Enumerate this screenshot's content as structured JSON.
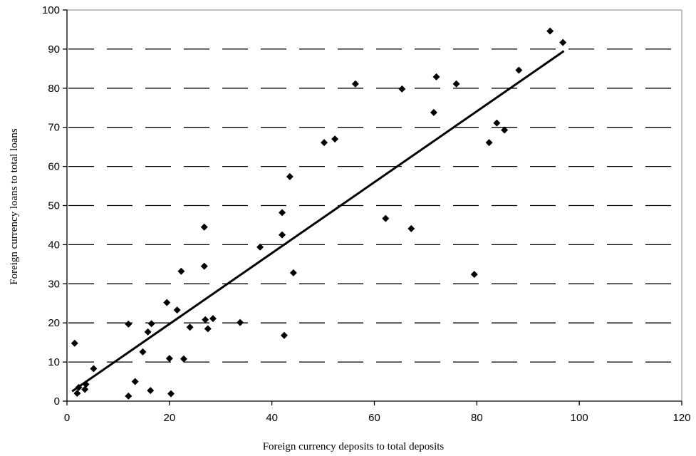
{
  "chart_data": {
    "type": "scatter",
    "title": "",
    "xlabel": "Foreign currency deposits to total deposits",
    "ylabel": "Foreign currency loans to total loans",
    "xlim": [
      0,
      120
    ],
    "ylim": [
      0,
      100
    ],
    "xticks": [
      0,
      20,
      40,
      60,
      80,
      100,
      120
    ],
    "yticks": [
      0,
      10,
      20,
      30,
      40,
      50,
      60,
      70,
      80,
      90,
      100
    ],
    "grid": "dashed-horizontal",
    "trendline": {
      "x": [
        1,
        97
      ],
      "y": [
        2.5,
        89.5
      ]
    },
    "points": [
      {
        "x": 1.5,
        "y": 14.8
      },
      {
        "x": 2,
        "y": 2
      },
      {
        "x": 2.3,
        "y": 3.5
      },
      {
        "x": 3.5,
        "y": 3
      },
      {
        "x": 3.7,
        "y": 4.3
      },
      {
        "x": 5.2,
        "y": 8.3
      },
      {
        "x": 12,
        "y": 1.3
      },
      {
        "x": 12,
        "y": 19.7
      },
      {
        "x": 13.3,
        "y": 5
      },
      {
        "x": 14.8,
        "y": 12.6
      },
      {
        "x": 15.8,
        "y": 17.7
      },
      {
        "x": 16.3,
        "y": 2.7
      },
      {
        "x": 16.5,
        "y": 19.8
      },
      {
        "x": 19.5,
        "y": 25.2
      },
      {
        "x": 20,
        "y": 10.9
      },
      {
        "x": 20.3,
        "y": 1.9
      },
      {
        "x": 21.5,
        "y": 23.3
      },
      {
        "x": 22.3,
        "y": 33.2
      },
      {
        "x": 22.8,
        "y": 10.8
      },
      {
        "x": 24,
        "y": 18.9
      },
      {
        "x": 26.8,
        "y": 44.5
      },
      {
        "x": 26.8,
        "y": 34.5
      },
      {
        "x": 27,
        "y": 20.8
      },
      {
        "x": 27.5,
        "y": 18.5
      },
      {
        "x": 28.5,
        "y": 21.1
      },
      {
        "x": 33.8,
        "y": 20.1
      },
      {
        "x": 37.7,
        "y": 39.4
      },
      {
        "x": 42,
        "y": 48.2
      },
      {
        "x": 42,
        "y": 42.5
      },
      {
        "x": 42.4,
        "y": 16.8
      },
      {
        "x": 43.5,
        "y": 57.4
      },
      {
        "x": 44.2,
        "y": 32.8
      },
      {
        "x": 50.2,
        "y": 66.1
      },
      {
        "x": 52.3,
        "y": 67
      },
      {
        "x": 56.3,
        "y": 81.1
      },
      {
        "x": 62.2,
        "y": 46.7
      },
      {
        "x": 65.4,
        "y": 79.8
      },
      {
        "x": 67.2,
        "y": 44.1
      },
      {
        "x": 71.6,
        "y": 73.8
      },
      {
        "x": 72.1,
        "y": 82.9
      },
      {
        "x": 76,
        "y": 81.1
      },
      {
        "x": 79.5,
        "y": 32.4
      },
      {
        "x": 82.4,
        "y": 66.1
      },
      {
        "x": 83.9,
        "y": 71.1
      },
      {
        "x": 85.4,
        "y": 69.3
      },
      {
        "x": 88.2,
        "y": 84.6
      },
      {
        "x": 94.3,
        "y": 94.6
      },
      {
        "x": 96.8,
        "y": 91.7
      }
    ]
  }
}
